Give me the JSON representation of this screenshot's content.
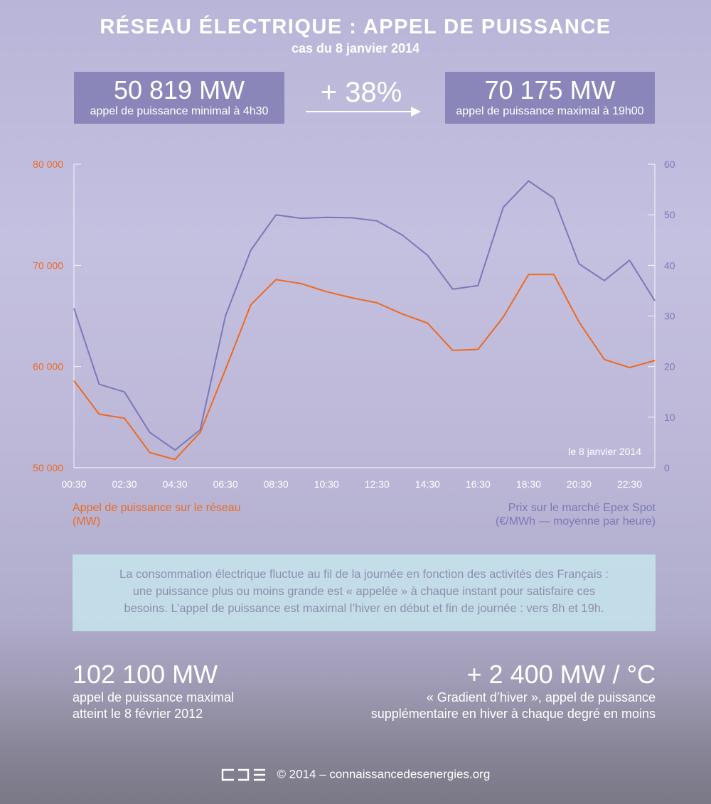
{
  "header": {
    "title": "RÉSEAU ÉLECTRIQUE : APPEL DE PUISSANCE",
    "subtitle": "cas du 8 janvier 2014"
  },
  "stats": {
    "min_value": "50 819 MW",
    "min_label": "appel de puissance minimal à 4h30",
    "increase": "+ 38%",
    "max_value": "70 175 MW",
    "max_label": "appel de puissance maximal à 19h00"
  },
  "legend": {
    "left_line1": "Appel de puissance sur le réseau",
    "left_line2": "(MW)",
    "right_line1": "Prix sur le marché Epex Spot",
    "right_line2": "(€/MWh — moyenne par heure)"
  },
  "info": {
    "line1": "La consommation électrique fluctue au fil de la journée en fonction des activités des Français :",
    "line2": "une puissance plus ou moins grande est « appelée » à chaque instant pour satisfaire ces",
    "line3": "besoins. L’appel de puissance est maximal l’hiver en début et fin de journée : vers 8h et 19h."
  },
  "bottom": {
    "left_value": "102 100 MW",
    "left_line1": "appel de puissance maximal",
    "left_line2": "atteint le 8 février 2012",
    "right_value": "+ 2 400 MW / °C",
    "right_line1": "« Gradient d’hiver », appel de puissance",
    "right_line2": "supplémentaire en hiver à chaque degré en moins"
  },
  "footer": {
    "credit": "© 2014 – connaissancedesenergies.org"
  },
  "colors": {
    "power": "#ec6a22",
    "price": "#7c78b8",
    "box": "#8b86b9"
  },
  "chart_data": {
    "type": "line",
    "title": "",
    "annotation": "le 8 janvier 2014",
    "x": [
      "00:30",
      "01:30",
      "02:30",
      "03:30",
      "04:30",
      "05:30",
      "06:30",
      "07:30",
      "08:30",
      "09:30",
      "10:30",
      "11:30",
      "12:30",
      "13:30",
      "14:30",
      "15:30",
      "16:30",
      "17:30",
      "18:30",
      "19:30",
      "20:30",
      "21:30",
      "22:30",
      "23:30"
    ],
    "x_tick_labels": [
      "00:30",
      "02:30",
      "04:30",
      "06:30",
      "08:30",
      "10:30",
      "12:30",
      "14:30",
      "16:30",
      "18:30",
      "20:30",
      "22:30"
    ],
    "series": [
      {
        "name": "Appel de puissance sur le réseau (MW)",
        "axis": "left",
        "values": [
          58600,
          55300,
          54900,
          51500,
          50819,
          53500,
          59700,
          66100,
          68600,
          68200,
          67400,
          66800,
          66300,
          65200,
          64300,
          61600,
          61700,
          64900,
          69100,
          69100,
          64400,
          60700,
          59900,
          60600
        ]
      },
      {
        "name": "Prix sur le marché Epex Spot (€/MWh — moyenne par heure)",
        "axis": "right",
        "values": [
          31.5,
          16.5,
          15.0,
          7.0,
          3.5,
          7.5,
          30.0,
          43.0,
          50.0,
          49.3,
          49.5,
          49.4,
          48.8,
          46.0,
          42.0,
          35.3,
          36.0,
          51.5,
          56.7,
          53.3,
          40.3,
          37.0,
          41.0,
          33.0
        ]
      }
    ],
    "y_left": {
      "range": [
        50000,
        80000
      ],
      "ticks": [
        50000,
        60000,
        70000,
        80000
      ],
      "tick_labels": [
        "50 000",
        "60 000",
        "70 000",
        "80 000"
      ]
    },
    "y_right": {
      "range": [
        0,
        60
      ],
      "ticks": [
        0,
        10,
        20,
        30,
        40,
        50,
        60
      ],
      "tick_labels": [
        "0",
        "10",
        "20",
        "30",
        "40",
        "50",
        "60"
      ]
    },
    "grid": false
  }
}
